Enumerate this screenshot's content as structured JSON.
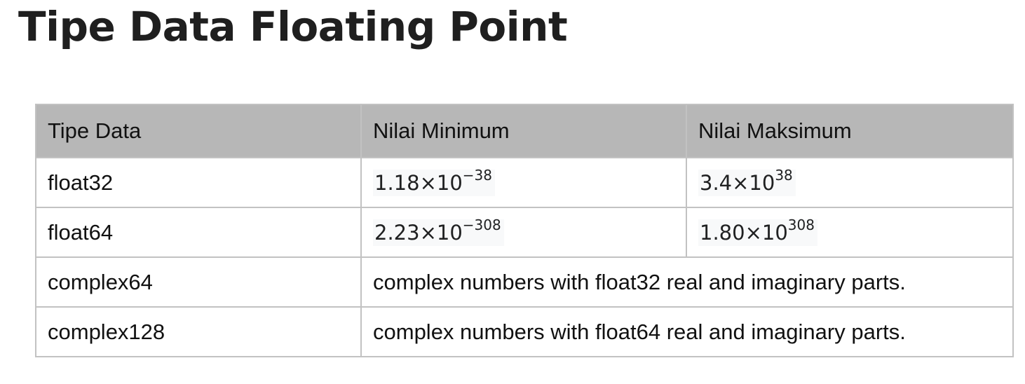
{
  "page": {
    "title": "Tipe Data Floating Point"
  },
  "table": {
    "headers": [
      "Tipe Data",
      "Nilai Minimum",
      "Nilai Maksimum"
    ],
    "rows": [
      {
        "type": "float32",
        "min": {
          "mantissa": "1.18×10",
          "exponent": "−38"
        },
        "max": {
          "mantissa": "3.4×10",
          "exponent": "38"
        }
      },
      {
        "type": "float64",
        "min": {
          "mantissa": "2.23×10",
          "exponent": "−308"
        },
        "max": {
          "mantissa": "1.80×10",
          "exponent": "308"
        }
      },
      {
        "type": "complex64",
        "description": "complex numbers with float32 real and imaginary parts."
      },
      {
        "type": "complex128",
        "description": "complex numbers with float64 real and imaginary parts."
      }
    ]
  }
}
